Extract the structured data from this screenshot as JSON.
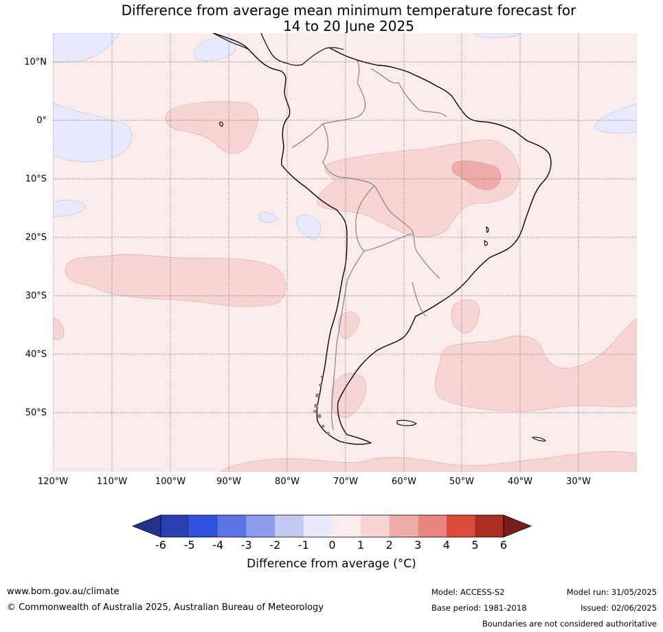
{
  "title": {
    "line1": "Difference from average mean minimum temperature forecast for",
    "line2": "14 to 20 June 2025"
  },
  "map": {
    "region": "South America",
    "lat_labels": [
      "10°N",
      "0°",
      "10°S",
      "20°S",
      "30°S",
      "40°S",
      "50°S"
    ],
    "lon_labels": [
      "120°W",
      "110°W",
      "100°W",
      "90°W",
      "80°W",
      "70°W",
      "60°W",
      "50°W",
      "40°W",
      "30°W"
    ],
    "background_category": "0 to 1",
    "anomaly_regions": [
      {
        "area": "central Brazil / Bolivia",
        "category": "1 to 2"
      },
      {
        "area": "northeast Brazil core",
        "category": "2 to 3"
      },
      {
        "area": "east Pacific near equator",
        "category": "1 to 2"
      },
      {
        "area": "southeast Pacific band 25-33°S",
        "category": "1 to 2"
      },
      {
        "area": "South Atlantic 38-50°S",
        "category": "1 to 2"
      },
      {
        "area": "central Argentina",
        "category": "1 to 2"
      },
      {
        "area": "Patagonia",
        "category": "1 to 2"
      },
      {
        "area": "eastern Pacific edges",
        "category": "-1 to 0"
      }
    ]
  },
  "colorbar": {
    "ticks": [
      "-6",
      "-5",
      "-4",
      "-3",
      "-2",
      "-1",
      "0",
      "1",
      "2",
      "3",
      "4",
      "5",
      "6"
    ],
    "colors": [
      "#263289",
      "#2b3fb5",
      "#2f52e0",
      "#5b73e6",
      "#8b9cec",
      "#c3c9f3",
      "#e8eafb",
      "#fbebea",
      "#f6d5d4",
      "#eeaca9",
      "#e8857f",
      "#dc4a3c",
      "#ac2d22",
      "#7a1c17"
    ],
    "label": "Difference from average (°C)"
  },
  "footer": {
    "website": "www.bom.gov.au/climate",
    "copyright": "© Commonwealth of Australia 2025, Australian Bureau of Meteorology",
    "model": "Model: ACCESS-S2",
    "base_period": "Base period: 1981-2018",
    "model_run": "Model run: 31/05/2025",
    "issued": "Issued: 02/06/2025",
    "disclaimer": "Boundaries are not considered authoritative"
  }
}
